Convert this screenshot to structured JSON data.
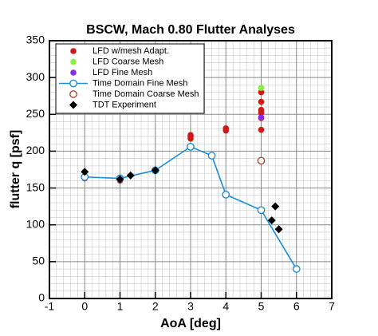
{
  "chart_data": {
    "type": "scatter",
    "title": "BSCW, Mach 0.80 Flutter Analyses",
    "x_label": "AoA [deg]",
    "y_label": "flutter q [psf]",
    "xlim": [
      -1,
      7
    ],
    "xticks": [
      -1,
      0,
      1,
      2,
      3,
      4,
      5,
      6,
      7
    ],
    "ylim": [
      0,
      350
    ],
    "yticks": [
      0,
      50,
      100,
      150,
      200,
      250,
      300,
      350
    ],
    "grid": true,
    "minor_grid": true,
    "legend": "upper-left",
    "series": [
      {
        "name": "LFD w/mesh Adapt.",
        "color": "#d01818",
        "marker": "circle-filled",
        "line": false,
        "x": [
          0,
          0,
          1,
          3,
          3,
          3,
          4,
          4,
          5,
          5,
          5,
          5,
          5,
          5
        ],
        "values": [
          163,
          165,
          160,
          217,
          220,
          222,
          228,
          231,
          229,
          245,
          252,
          256,
          267,
          280
        ]
      },
      {
        "name": "LFD Coarse Mesh",
        "color": "#88f040",
        "marker": "circle-filled",
        "line": false,
        "x": [
          5
        ],
        "values": [
          286
        ]
      },
      {
        "name": "LFD Fine Mesh",
        "color": "#8a2be2",
        "marker": "circle-filled",
        "line": false,
        "x": [
          5
        ],
        "values": [
          246
        ]
      },
      {
        "name": "Time Domain Fine Mesh",
        "color": "#1a8fd6",
        "marker": "circle-open",
        "line": true,
        "x": [
          0,
          1,
          2,
          3,
          3.6,
          4,
          5,
          6
        ],
        "values": [
          165,
          163,
          174,
          206,
          194,
          141,
          120,
          40
        ]
      },
      {
        "name": "Time Domain Coarse Mesh",
        "color": "#b04a3a",
        "marker": "circle-open",
        "line": false,
        "x": [
          5
        ],
        "values": [
          187
        ]
      },
      {
        "name": "TDT Experiment",
        "color": "#000000",
        "marker": "diamond",
        "line": false,
        "x": [
          0,
          1,
          1.3,
          2,
          5.3,
          5.4,
          5.5
        ],
        "values": [
          172,
          162,
          167,
          174,
          106,
          125,
          94
        ]
      }
    ]
  }
}
